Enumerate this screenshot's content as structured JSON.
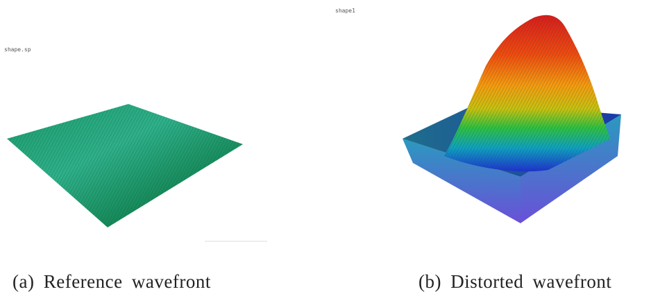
{
  "panels": [
    {
      "label": "shape.sp",
      "caption": "(a) Reference wavefront"
    },
    {
      "label": "shape1",
      "caption": "(b) Distorted wavefront"
    }
  ]
}
